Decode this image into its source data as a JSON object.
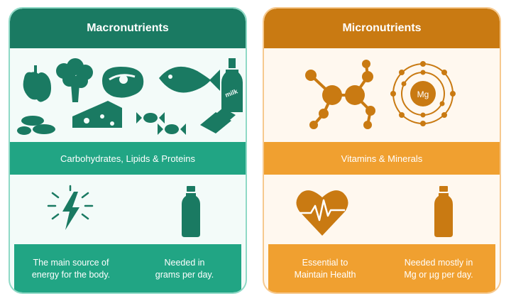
{
  "macro": {
    "title": "Macronutrients",
    "band": "Carbohydrates, Lipids & Proteins",
    "box_left": "The main source of\nenergy for the body.",
    "box_right": "Needed in\ngrams per day.",
    "milk_label": "milk",
    "icons": [
      "pepper-icon",
      "broccoli-icon",
      "steak-icon",
      "fish-icon",
      "milk-bottle-icon",
      "peanuts-icon",
      "cheese-icon",
      "candy-icon",
      "chocolate-icon",
      "lightning-icon",
      "bottle-icon"
    ]
  },
  "micro": {
    "title": "Micronutrients",
    "band": "Vitamins & Minerals",
    "box_left": "Essential to\nMaintain Health",
    "box_right": "Needed mostly in\nMg or µg per day.",
    "atom_label": "Mg",
    "icons": [
      "molecule-icon",
      "atom-icon",
      "heartbeat-icon",
      "bottle-icon"
    ]
  },
  "colors": {
    "macro_dark": "#1a7a62",
    "macro_mid": "#21a584",
    "micro_dark": "#c97a12",
    "micro_mid": "#f0a030"
  }
}
